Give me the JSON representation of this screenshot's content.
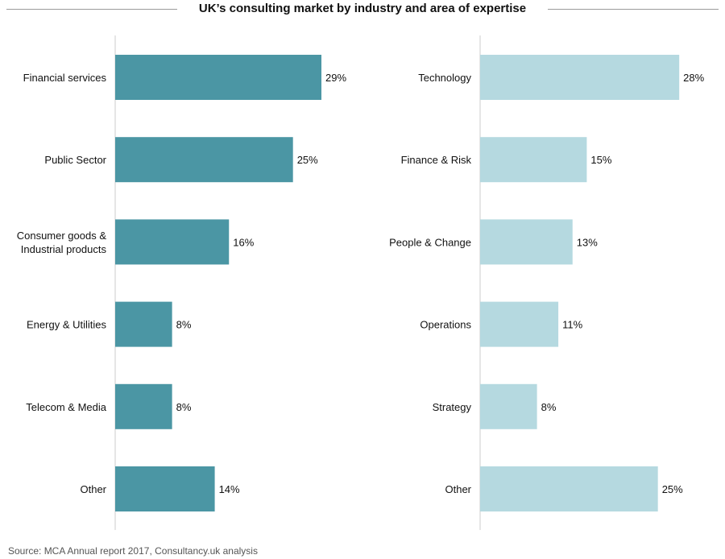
{
  "title": "UK’s consulting market by industry and area of expertise",
  "source": "Source: MCA Annual report 2017, Consultancy.uk analysis",
  "colors": {
    "industry_bar": "#4b96a4",
    "expertise_bar": "#b5d9e0",
    "axis": "#cccccc",
    "rule": "#9a9a9a"
  },
  "chart_data": [
    {
      "type": "bar",
      "orientation": "horizontal",
      "categories": [
        "Financial services",
        "Public Sector",
        "Consumer goods & Industrial products",
        "Energy & Utilities",
        "Telecom & Media",
        "Other"
      ],
      "values": [
        29,
        25,
        16,
        8,
        8,
        14
      ],
      "data_labels": [
        "29%",
        "25%",
        "16%",
        "8%",
        "8%",
        "14%"
      ],
      "unit": "%",
      "color": "#4b96a4"
    },
    {
      "type": "bar",
      "orientation": "horizontal",
      "categories": [
        "Technology",
        "Finance & Risk",
        "People & Change",
        "Operations",
        "Strategy",
        "Other"
      ],
      "values": [
        28,
        15,
        13,
        11,
        8,
        25
      ],
      "data_labels": [
        "28%",
        "15%",
        "13%",
        "11%",
        "8%",
        "25%"
      ],
      "unit": "%",
      "color": "#b5d9e0"
    }
  ]
}
